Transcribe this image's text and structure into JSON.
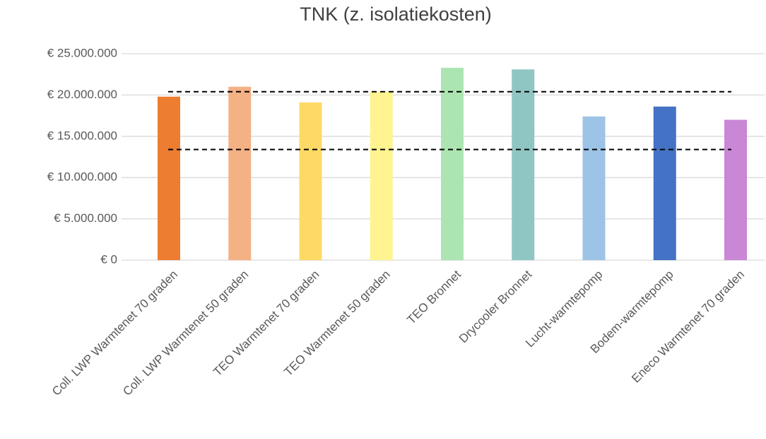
{
  "chart_data": {
    "type": "bar",
    "title": "TNK (z. isolatiekosten)",
    "categories": [
      "Coll. LWP Warmtenet 70 graden",
      "Coll. LWP Warmtenet 50 graden",
      "TEO Warmtenet 70 graden",
      "TEO Warmtenet 50 graden",
      "TEO Bronnet",
      "Drycooler Bronnet",
      "Lucht-warmtepomp",
      "Bodem-warmtepomp",
      "Eneco Warmtenet 70 graden"
    ],
    "values": [
      19800000,
      21000000,
      19100000,
      20400000,
      23300000,
      23100000,
      17400000,
      18600000,
      17000000
    ],
    "colors": [
      "#ed7d31",
      "#f4b183",
      "#ffd966",
      "#fff48f",
      "#ace5b2",
      "#8fc6c4",
      "#9dc3e6",
      "#4472c4",
      "#c987d6"
    ],
    "reference_lines": [
      20400000,
      13400000
    ],
    "ylim": [
      0,
      25000000
    ],
    "yticks": [
      {
        "value": 0,
        "label": "€ 0"
      },
      {
        "value": 5000000,
        "label": "€ 5.000.000"
      },
      {
        "value": 10000000,
        "label": "€ 10.000.000"
      },
      {
        "value": 15000000,
        "label": "€ 15.000.000"
      },
      {
        "value": 20000000,
        "label": "€ 20.000.000"
      },
      {
        "value": 25000000,
        "label": "€ 25.000.000"
      }
    ],
    "grid": true
  }
}
